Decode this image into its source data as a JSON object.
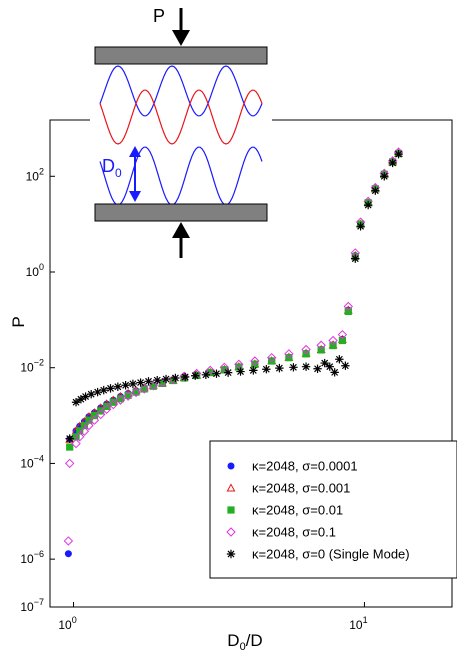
{
  "chart_data": {
    "type": "scatter",
    "title": "",
    "xlabel": {
      "base": "D",
      "sub": "0",
      "rest": "/D"
    },
    "ylabel": "P",
    "xscale": "log",
    "yscale": "log",
    "xlim": [
      0.83,
      20
    ],
    "ylim": [
      1e-07,
      1500
    ],
    "x_ticks": [
      {
        "value": 1,
        "base": "10",
        "exp": "0"
      },
      {
        "value": 10,
        "base": "10",
        "exp": "1"
      }
    ],
    "y_ticks": [
      {
        "value": 1e-07,
        "base": "10",
        "exp": "−7"
      },
      {
        "value": 1e-06,
        "base": "10",
        "exp": "−6"
      },
      {
        "value": 0.0001,
        "base": "10",
        "exp": "−4"
      },
      {
        "value": 0.01,
        "base": "10",
        "exp": "−2"
      },
      {
        "value": 1,
        "base": "10",
        "exp": "0"
      },
      {
        "value": 100,
        "base": "10",
        "exp": "2"
      }
    ],
    "legend_position": "bottom-right",
    "series": [
      {
        "name": "κ=2048, σ=0.0001",
        "marker": "circle",
        "color": "#1a1aff",
        "points": [
          [
            0.96,
            1.3e-06
          ],
          [
            0.97,
            0.00032
          ],
          [
            1.02,
            0.00048
          ],
          [
            1.05,
            0.0006
          ],
          [
            1.09,
            0.00075
          ],
          [
            1.13,
            0.00095
          ],
          [
            1.18,
            0.00115
          ],
          [
            1.24,
            0.00145
          ],
          [
            1.3,
            0.00175
          ],
          [
            1.37,
            0.0021
          ],
          [
            1.45,
            0.0025
          ],
          [
            1.54,
            0.0029
          ],
          [
            1.64,
            0.0033
          ],
          [
            1.75,
            0.0038
          ],
          [
            1.88,
            0.0043
          ],
          [
            2.02,
            0.0048
          ],
          [
            2.2,
            0.0055
          ],
          [
            2.4,
            0.0062
          ],
          [
            2.65,
            0.007
          ],
          [
            2.95,
            0.008
          ],
          [
            3.3,
            0.0092
          ],
          [
            3.7,
            0.0105
          ],
          [
            4.2,
            0.012
          ],
          [
            4.8,
            0.014
          ],
          [
            5.5,
            0.0165
          ],
          [
            6.3,
            0.02
          ],
          [
            7.1,
            0.024
          ],
          [
            7.8,
            0.03
          ],
          [
            8.4,
            0.039
          ],
          [
            8.8,
            0.16
          ],
          [
            9.3,
            2.2
          ],
          [
            9.7,
            10
          ],
          [
            10.3,
            28
          ],
          [
            10.9,
            55
          ],
          [
            11.7,
            110
          ],
          [
            12.5,
            200
          ],
          [
            13.1,
            300
          ]
        ]
      },
      {
        "name": "κ=2048, σ=0.001",
        "marker": "triangle",
        "color": "#e8161c",
        "points": [
          [
            0.97,
            0.00032
          ],
          [
            1.02,
            0.00048
          ],
          [
            1.05,
            0.0006
          ],
          [
            1.09,
            0.00075
          ],
          [
            1.13,
            0.00095
          ],
          [
            1.18,
            0.00115
          ],
          [
            1.24,
            0.00145
          ],
          [
            1.3,
            0.00175
          ],
          [
            1.37,
            0.0021
          ],
          [
            1.45,
            0.0025
          ],
          [
            1.54,
            0.0029
          ],
          [
            1.64,
            0.0033
          ],
          [
            1.75,
            0.0038
          ],
          [
            1.88,
            0.0043
          ],
          [
            2.02,
            0.0048
          ],
          [
            2.2,
            0.0055
          ],
          [
            2.4,
            0.0062
          ],
          [
            2.65,
            0.007
          ],
          [
            2.95,
            0.008
          ],
          [
            3.3,
            0.0092
          ],
          [
            3.7,
            0.0105
          ],
          [
            4.2,
            0.012
          ],
          [
            4.8,
            0.014
          ],
          [
            5.5,
            0.0165
          ],
          [
            6.3,
            0.02
          ],
          [
            7.1,
            0.024
          ],
          [
            7.8,
            0.03
          ],
          [
            8.4,
            0.039
          ],
          [
            8.8,
            0.16
          ],
          [
            9.3,
            2.2
          ],
          [
            9.7,
            10
          ],
          [
            10.3,
            28
          ],
          [
            10.9,
            55
          ],
          [
            11.7,
            110
          ],
          [
            12.5,
            200
          ],
          [
            13.1,
            300
          ]
        ]
      },
      {
        "name": "κ=2048, σ=0.01",
        "marker": "square",
        "color": "#22b022",
        "points": [
          [
            0.97,
            0.00022
          ],
          [
            1.02,
            0.00036
          ],
          [
            1.05,
            0.00048
          ],
          [
            1.09,
            0.00062
          ],
          [
            1.13,
            0.0008
          ],
          [
            1.18,
            0.001
          ],
          [
            1.24,
            0.00125
          ],
          [
            1.3,
            0.00155
          ],
          [
            1.37,
            0.0019
          ],
          [
            1.45,
            0.00225
          ],
          [
            1.54,
            0.00265
          ],
          [
            1.64,
            0.0031
          ],
          [
            1.75,
            0.0036
          ],
          [
            1.88,
            0.0041
          ],
          [
            2.02,
            0.0047
          ],
          [
            2.2,
            0.0054
          ],
          [
            2.4,
            0.0061
          ],
          [
            2.65,
            0.0069
          ],
          [
            2.95,
            0.0079
          ],
          [
            3.3,
            0.009
          ],
          [
            3.7,
            0.0103
          ],
          [
            4.2,
            0.0118
          ],
          [
            4.8,
            0.0138
          ],
          [
            5.5,
            0.0162
          ],
          [
            6.3,
            0.0195
          ],
          [
            7.1,
            0.0235
          ],
          [
            7.8,
            0.029
          ],
          [
            8.4,
            0.037
          ],
          [
            8.8,
            0.15
          ],
          [
            9.3,
            2.1
          ],
          [
            9.7,
            10
          ],
          [
            10.3,
            28
          ],
          [
            10.9,
            55
          ],
          [
            11.7,
            110
          ],
          [
            12.5,
            200
          ],
          [
            13.1,
            300
          ]
        ]
      },
      {
        "name": "κ=2048, σ=0.1",
        "marker": "diamond",
        "color": "#e033e0",
        "points": [
          [
            0.96,
            2.4e-06
          ],
          [
            0.97,
            0.0001
          ],
          [
            1.02,
            0.00026
          ],
          [
            1.05,
            0.00036
          ],
          [
            1.09,
            0.00047
          ],
          [
            1.13,
            0.00062
          ],
          [
            1.18,
            0.0008
          ],
          [
            1.24,
            0.00105
          ],
          [
            1.3,
            0.00135
          ],
          [
            1.37,
            0.0017
          ],
          [
            1.45,
            0.0021
          ],
          [
            1.54,
            0.00255
          ],
          [
            1.64,
            0.00305
          ],
          [
            1.75,
            0.0036
          ],
          [
            1.88,
            0.0042
          ],
          [
            2.02,
            0.0049
          ],
          [
            2.2,
            0.0057
          ],
          [
            2.4,
            0.0066
          ],
          [
            2.65,
            0.0076
          ],
          [
            2.95,
            0.0088
          ],
          [
            3.3,
            0.0102
          ],
          [
            3.7,
            0.0118
          ],
          [
            4.2,
            0.0138
          ],
          [
            4.8,
            0.0162
          ],
          [
            5.5,
            0.0195
          ],
          [
            6.3,
            0.024
          ],
          [
            7.1,
            0.0295
          ],
          [
            7.8,
            0.037
          ],
          [
            8.4,
            0.049
          ],
          [
            8.8,
            0.19
          ],
          [
            9.3,
            2.5
          ],
          [
            9.7,
            11
          ],
          [
            10.3,
            30
          ],
          [
            10.9,
            58
          ],
          [
            11.7,
            115
          ],
          [
            12.5,
            210
          ],
          [
            13.1,
            320
          ]
        ]
      },
      {
        "name": "κ=2048, σ=0 (Single Mode)",
        "marker": "star",
        "color": "#000000",
        "points": [
          [
            0.97,
            0.00033
          ],
          [
            1.02,
            0.0019
          ],
          [
            1.06,
            0.0022
          ],
          [
            1.1,
            0.0025
          ],
          [
            1.15,
            0.0028
          ],
          [
            1.21,
            0.0031
          ],
          [
            1.27,
            0.0034
          ],
          [
            1.34,
            0.0037
          ],
          [
            1.42,
            0.004
          ],
          [
            1.51,
            0.0043
          ],
          [
            1.6,
            0.0046
          ],
          [
            1.7,
            0.0049
          ],
          [
            1.81,
            0.0052
          ],
          [
            1.94,
            0.0055
          ],
          [
            2.08,
            0.0058
          ],
          [
            2.24,
            0.0061
          ],
          [
            2.42,
            0.0064
          ],
          [
            2.62,
            0.0068
          ],
          [
            2.85,
            0.0071
          ],
          [
            3.1,
            0.0075
          ],
          [
            3.4,
            0.0079
          ],
          [
            3.75,
            0.0083
          ],
          [
            4.15,
            0.0088
          ],
          [
            4.6,
            0.0093
          ],
          [
            5.1,
            0.0098
          ],
          [
            5.7,
            0.0102
          ],
          [
            6.3,
            0.0105
          ],
          [
            6.9,
            0.0095
          ],
          [
            7.3,
            0.0125
          ],
          [
            7.6,
            0.0105
          ],
          [
            7.9,
            0.008
          ],
          [
            8.2,
            0.015
          ],
          [
            8.6,
            0.011
          ],
          [
            9.3,
            1.9
          ],
          [
            9.7,
            9
          ],
          [
            10.3,
            25
          ],
          [
            10.9,
            50
          ],
          [
            11.7,
            100
          ],
          [
            12.5,
            190
          ],
          [
            13.1,
            290
          ]
        ]
      }
    ],
    "inset": {
      "force_label": "P",
      "gap_label": {
        "base": "D",
        "sub": "0"
      }
    }
  }
}
